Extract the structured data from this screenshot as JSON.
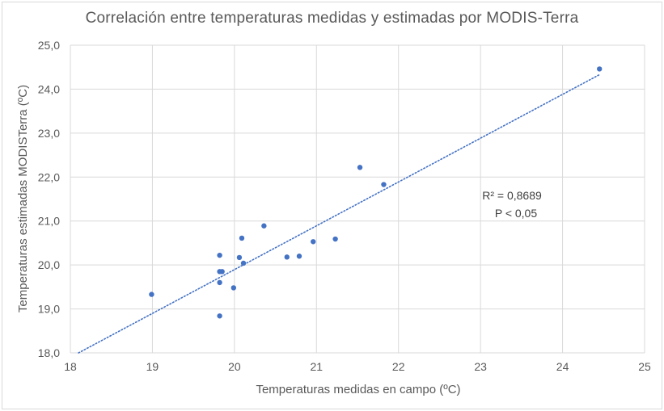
{
  "chart_data": {
    "type": "scatter",
    "title": "Correlación entre temperaturas medidas y estimadas por MODIS-Terra",
    "xlabel": "Temperaturas medidas en campo (ºC)",
    "ylabel": "Temperaturas estimadas MODISTerra (ºC)",
    "xlim": [
      18,
      25
    ],
    "ylim": [
      18.0,
      25.0
    ],
    "x_ticks": [
      "18",
      "19",
      "20",
      "21",
      "22",
      "23",
      "24",
      "25"
    ],
    "y_ticks": [
      "18,0",
      "19,0",
      "20,0",
      "21,0",
      "22,0",
      "23,0",
      "24,0",
      "25,0"
    ],
    "grid": true,
    "series": [
      {
        "name": "Temperaturas",
        "color": "#4472c4",
        "points": [
          {
            "x": 18.99,
            "y": 19.33
          },
          {
            "x": 19.82,
            "y": 20.22
          },
          {
            "x": 19.82,
            "y": 19.85
          },
          {
            "x": 19.85,
            "y": 19.85
          },
          {
            "x": 19.82,
            "y": 19.6
          },
          {
            "x": 19.82,
            "y": 18.84
          },
          {
            "x": 19.99,
            "y": 19.48
          },
          {
            "x": 20.06,
            "y": 20.17
          },
          {
            "x": 20.09,
            "y": 20.61
          },
          {
            "x": 20.11,
            "y": 20.04
          },
          {
            "x": 20.36,
            "y": 20.89
          },
          {
            "x": 20.64,
            "y": 20.18
          },
          {
            "x": 20.79,
            "y": 20.2
          },
          {
            "x": 20.96,
            "y": 20.53
          },
          {
            "x": 21.23,
            "y": 20.59
          },
          {
            "x": 21.53,
            "y": 22.22
          },
          {
            "x": 21.82,
            "y": 21.83
          },
          {
            "x": 24.45,
            "y": 24.46
          }
        ]
      }
    ],
    "trendline": {
      "type": "linear",
      "style": "dotted",
      "x_range": [
        18.1,
        24.45
      ],
      "y_start": 18.0,
      "y_end": 24.33
    },
    "annotation": {
      "r2": "R² = 0,8689",
      "p": "P < 0,05"
    }
  }
}
